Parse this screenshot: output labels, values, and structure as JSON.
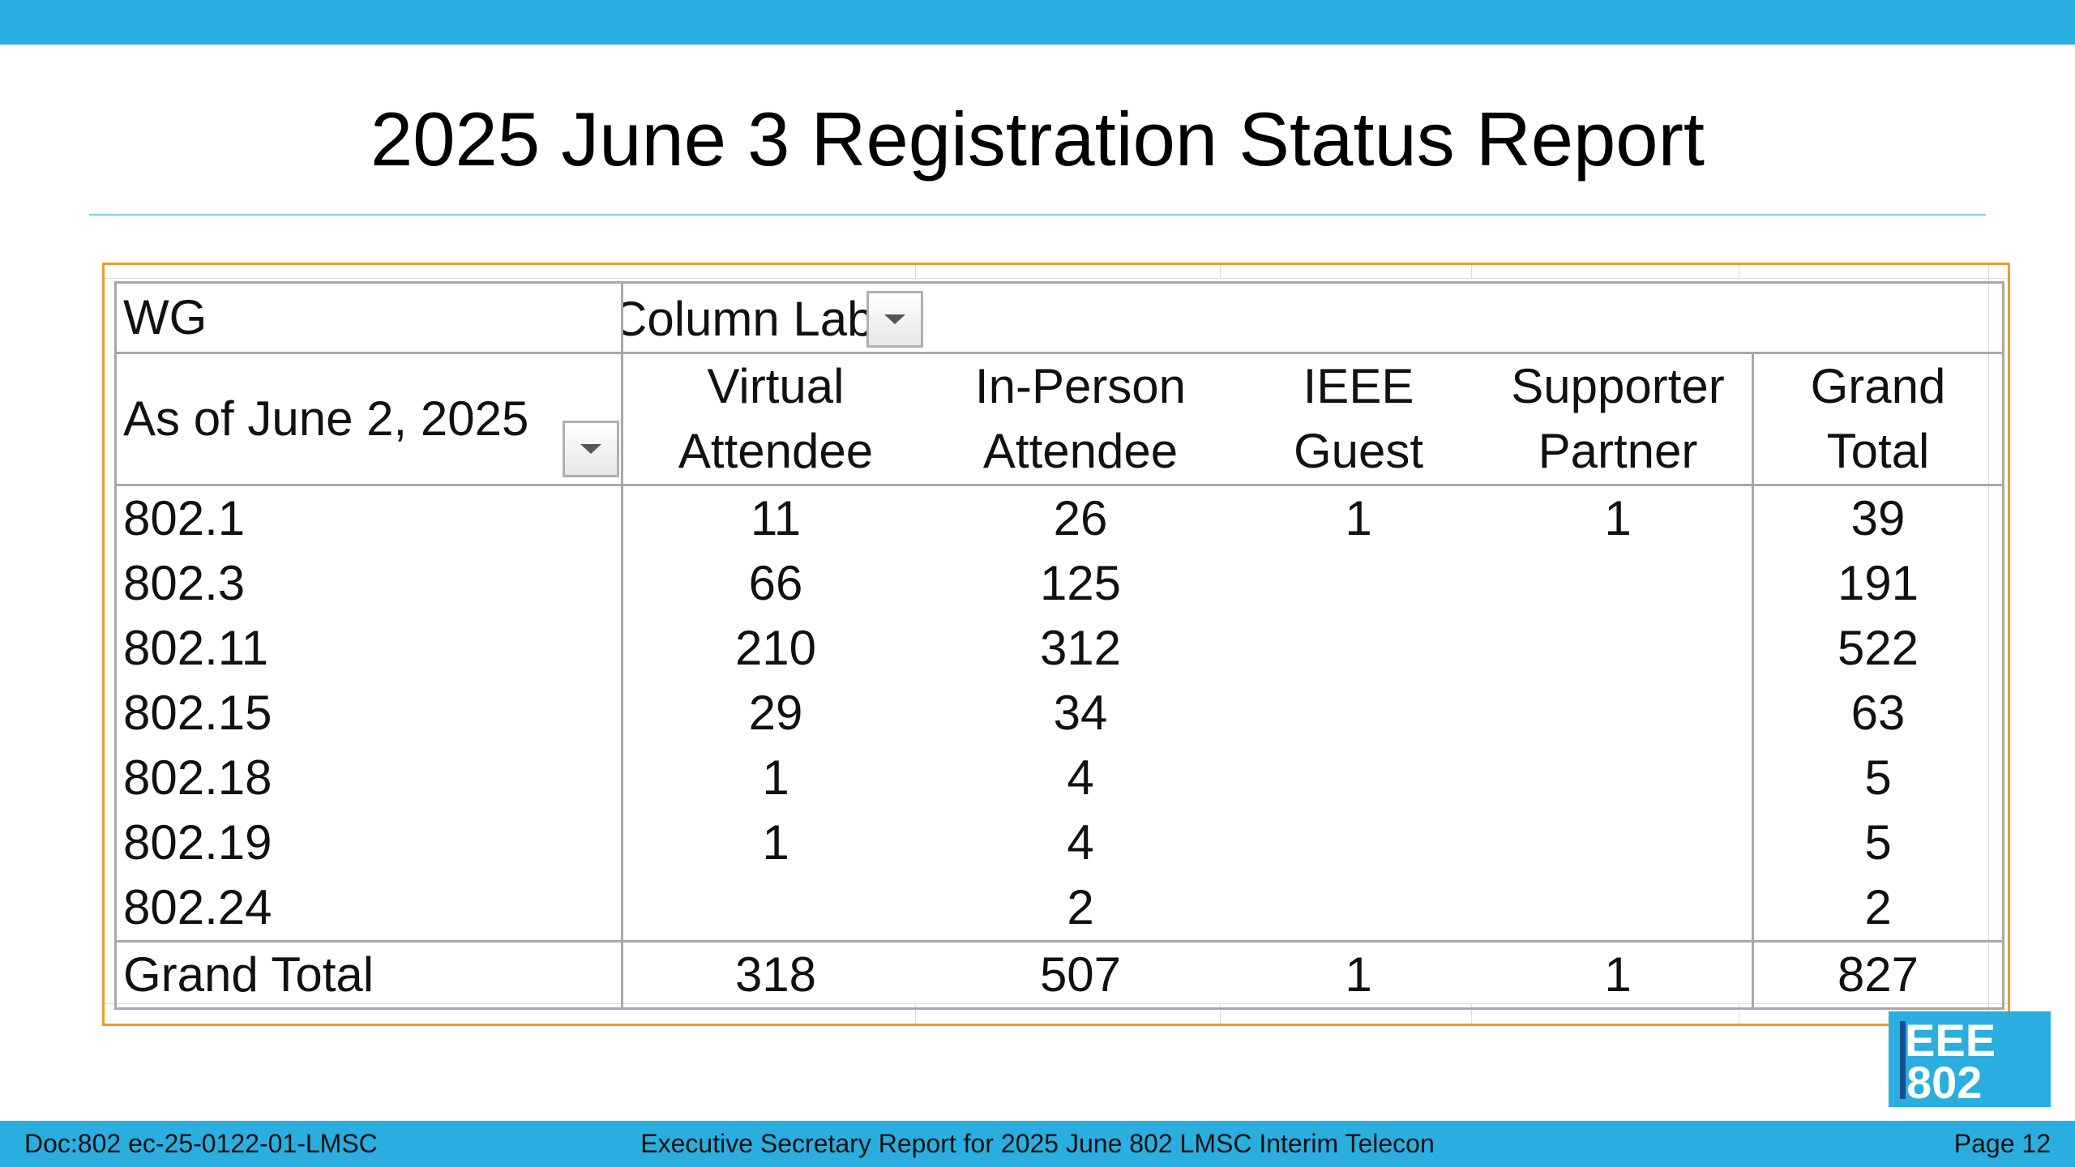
{
  "slide": {
    "title": "2025 June 3 Registration Status Report",
    "colors": {
      "bar": "#2aaedf",
      "frame": "#f39a2b",
      "rule": "#7fcfe0"
    }
  },
  "pivot": {
    "corner_label": "WG",
    "column_labels_field": "Column Labels",
    "row_field_label": "As of June 2, 2025",
    "columns": [
      {
        "line1": "Virtual",
        "line2": "Attendee"
      },
      {
        "line1": "In-Person",
        "line2": "Attendee"
      },
      {
        "line1": "IEEE",
        "line2": "Guest"
      },
      {
        "line1": "Supporter",
        "line2": "Partner"
      },
      {
        "line1": "Grand",
        "line2": "Total"
      }
    ],
    "rows": [
      {
        "wg": "802.1",
        "va": "11",
        "ip": "26",
        "ig": "1",
        "sp": "1",
        "gt": "39"
      },
      {
        "wg": "802.3",
        "va": "66",
        "ip": "125",
        "ig": "",
        "sp": "",
        "gt": "191"
      },
      {
        "wg": "802.11",
        "va": "210",
        "ip": "312",
        "ig": "",
        "sp": "",
        "gt": "522"
      },
      {
        "wg": "802.15",
        "va": "29",
        "ip": "34",
        "ig": "",
        "sp": "",
        "gt": "63"
      },
      {
        "wg": "802.18",
        "va": "1",
        "ip": "4",
        "ig": "",
        "sp": "",
        "gt": "5"
      },
      {
        "wg": "802.19",
        "va": "1",
        "ip": "4",
        "ig": "",
        "sp": "",
        "gt": "5"
      },
      {
        "wg": "802.24",
        "va": "",
        "ip": "2",
        "ig": "",
        "sp": "",
        "gt": "2"
      }
    ],
    "total": {
      "wg": "Grand Total",
      "va": "318",
      "ip": "507",
      "ig": "1",
      "sp": "1",
      "gt": "827"
    },
    "icons": {
      "filter_dropdown": "chevron-down-icon"
    }
  },
  "logo": {
    "line1": "EEE",
    "line2": "802"
  },
  "footer": {
    "doc": "Doc:802 ec-25-0122-01-LMSC",
    "center": "Executive Secretary Report for 2025 June 802 LMSC Interim Telecon",
    "page": "Page 12"
  }
}
